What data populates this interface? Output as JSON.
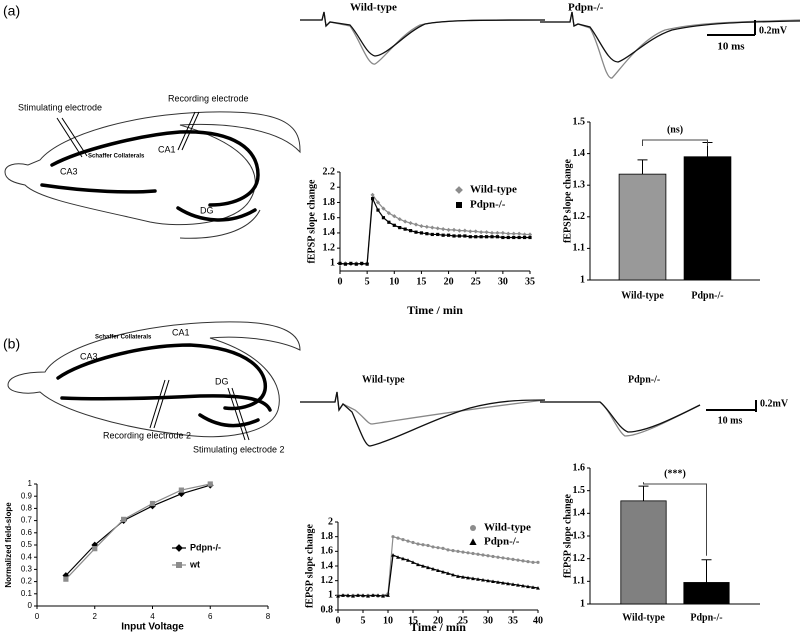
{
  "panel_labels": [
    "(a)",
    "(b)"
  ],
  "diagram_a": {
    "stimulating": "Stimulating electrode",
    "recording": "Recording electrode",
    "schaffer": "Schaffer Collaterals",
    "ca1": "CA1",
    "ca3": "CA3",
    "dg": "DG"
  },
  "diagram_b": {
    "schaffer": "Schaffer Collaterals",
    "ca1": "CA1",
    "ca3": "CA3",
    "dg": "DG",
    "recording": "Recording electrode 2",
    "stimulating": "Stimulating electrode 2"
  },
  "traces_a": {
    "left": "Wild-type",
    "right": "Pdpn-/-",
    "scale_y": "0.2mV",
    "scale_x": "10 ms"
  },
  "traces_b": {
    "left": "Wild-type",
    "right": "Pdpn-/-",
    "scale_y": "0.2mV",
    "scale_x": "10 ms"
  },
  "chart_data": [
    {
      "type": "line",
      "xlabel": "Time / min",
      "ylabel": "fEPSP slope change",
      "x": [
        0,
        1,
        2,
        3,
        4,
        5,
        6,
        7,
        8,
        9,
        10,
        11,
        12,
        13,
        14,
        15,
        16,
        17,
        18,
        19,
        20,
        21,
        22,
        23,
        24,
        25,
        26,
        27,
        28,
        29,
        30,
        31,
        32,
        33,
        34,
        35
      ],
      "series": [
        {
          "name": "Wild-type",
          "color": "#8c8c8c",
          "marker": "diamond",
          "values": [
            0.99,
            1.0,
            0.99,
            1.0,
            0.99,
            1.0,
            1.9,
            1.8,
            1.72,
            1.66,
            1.62,
            1.58,
            1.55,
            1.53,
            1.51,
            1.49,
            1.48,
            1.47,
            1.46,
            1.45,
            1.44,
            1.44,
            1.43,
            1.43,
            1.42,
            1.42,
            1.41,
            1.41,
            1.4,
            1.4,
            1.4,
            1.39,
            1.39,
            1.39,
            1.38,
            1.38
          ]
        },
        {
          "name": "Pdpn-/-",
          "color": "#000000",
          "marker": "square",
          "values": [
            1.0,
            0.99,
            1.0,
            0.99,
            1.0,
            0.99,
            1.85,
            1.7,
            1.6,
            1.54,
            1.5,
            1.47,
            1.45,
            1.43,
            1.41,
            1.4,
            1.39,
            1.38,
            1.38,
            1.37,
            1.37,
            1.36,
            1.36,
            1.36,
            1.35,
            1.35,
            1.35,
            1.35,
            1.35,
            1.35,
            1.34,
            1.34,
            1.34,
            1.34,
            1.34,
            1.34
          ]
        }
      ],
      "xlim": [
        0,
        35
      ],
      "xticks": [
        0,
        5,
        10,
        15,
        20,
        25,
        30,
        35
      ],
      "ylim": [
        0.9,
        2.2
      ],
      "yticks": [
        1,
        1.2,
        1.4,
        1.6,
        1.8,
        2,
        2.2
      ]
    },
    {
      "type": "bar",
      "ylabel": "fEPSP slope change",
      "annotation": "(ns)",
      "categories": [
        "Wild-type",
        "Pdpn-/-"
      ],
      "values": [
        1.335,
        1.39
      ],
      "errors": [
        0.045,
        0.045
      ],
      "colors": [
        "#999999",
        "#000000"
      ],
      "ylim": [
        1,
        1.5
      ],
      "yticks": [
        1,
        1.1,
        1.2,
        1.3,
        1.4,
        1.5
      ]
    },
    {
      "type": "line",
      "xlabel": "Input Voltage",
      "ylabel": "Normalized field-slope",
      "x": [
        1,
        2,
        3,
        4,
        5,
        6
      ],
      "series": [
        {
          "name": "Pdpn-/-",
          "color": "#000000",
          "marker": "diamond",
          "values": [
            0.25,
            0.5,
            0.7,
            0.82,
            0.92,
            0.99
          ]
        },
        {
          "name": "wt",
          "color": "#8c8c8c",
          "marker": "square",
          "values": [
            0.22,
            0.47,
            0.71,
            0.84,
            0.95,
            1.0
          ]
        }
      ],
      "xlim": [
        0,
        8
      ],
      "xticks": [
        0,
        2,
        4,
        6,
        8
      ],
      "ylim": [
        0,
        1
      ],
      "yticks": [
        0,
        0.1,
        0.2,
        0.3,
        0.4,
        0.5,
        0.6,
        0.7,
        0.8,
        0.9,
        1
      ]
    },
    {
      "type": "line",
      "xlabel": "Time / min",
      "ylabel": "fEPSP slope change",
      "x": [
        0,
        1,
        2,
        3,
        4,
        5,
        6,
        7,
        8,
        9,
        10,
        11,
        12,
        13,
        14,
        15,
        16,
        17,
        18,
        19,
        20,
        21,
        22,
        23,
        24,
        25,
        26,
        27,
        28,
        29,
        30,
        31,
        32,
        33,
        34,
        35,
        36,
        37,
        38,
        39,
        40
      ],
      "series": [
        {
          "name": "Wild-type",
          "color": "#8c8c8c",
          "marker": "circle",
          "values": [
            1.0,
            1.0,
            0.99,
            1.0,
            1.0,
            0.99,
            1.0,
            1.0,
            0.99,
            1.0,
            1.02,
            1.8,
            1.78,
            1.76,
            1.74,
            1.72,
            1.7,
            1.69,
            1.68,
            1.66,
            1.65,
            1.64,
            1.62,
            1.61,
            1.6,
            1.59,
            1.58,
            1.57,
            1.56,
            1.55,
            1.54,
            1.53,
            1.52,
            1.51,
            1.5,
            1.49,
            1.48,
            1.47,
            1.46,
            1.45,
            1.45
          ]
        },
        {
          "name": "Pdpn-/-",
          "color": "#000000",
          "marker": "triangle",
          "values": [
            0.99,
            1.0,
            1.0,
            0.99,
            1.0,
            1.0,
            0.99,
            1.0,
            1.0,
            0.99,
            1.0,
            1.55,
            1.52,
            1.5,
            1.48,
            1.45,
            1.42,
            1.4,
            1.38,
            1.36,
            1.34,
            1.32,
            1.3,
            1.28,
            1.26,
            1.25,
            1.24,
            1.23,
            1.22,
            1.21,
            1.2,
            1.19,
            1.18,
            1.17,
            1.16,
            1.15,
            1.14,
            1.13,
            1.12,
            1.11,
            1.1
          ]
        }
      ],
      "xlim": [
        0,
        40
      ],
      "xticks": [
        0,
        5,
        10,
        15,
        20,
        25,
        30,
        35,
        40
      ],
      "ylim": [
        0.8,
        2
      ],
      "yticks": [
        0.8,
        1,
        1.2,
        1.4,
        1.6,
        1.8,
        2
      ]
    },
    {
      "type": "bar",
      "ylabel": "fEPSP slope change",
      "annotation": "(***)",
      "categories": [
        "Wild-type",
        "Pdpn-/-"
      ],
      "values": [
        1.455,
        1.095
      ],
      "errors": [
        0.065,
        0.1
      ],
      "colors": [
        "#808080",
        "#000000"
      ],
      "ylim": [
        1,
        1.6
      ],
      "yticks": [
        1,
        1.1,
        1.2,
        1.3,
        1.4,
        1.5,
        1.6
      ]
    }
  ]
}
